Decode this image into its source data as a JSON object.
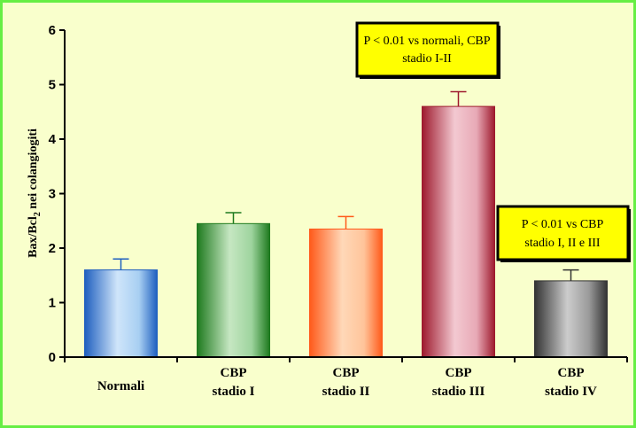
{
  "chart_data": {
    "type": "bar",
    "ylabel_main": "Bax/Bcl",
    "ylabel_sub": "2",
    "ylabel_tail": " nei colangiogiti",
    "ylim": [
      0,
      6
    ],
    "yticks": [
      "0",
      "1",
      "2",
      "3",
      "4",
      "5",
      "6"
    ],
    "categories": [
      {
        "line1": "Normali",
        "line2": ""
      },
      {
        "line1": "CBP",
        "line2": "stadio I"
      },
      {
        "line1": "CBP",
        "line2": "stadio II"
      },
      {
        "line1": "CBP",
        "line2": "stadio III"
      },
      {
        "line1": "CBP",
        "line2": "stadio IV"
      }
    ],
    "values": [
      1.6,
      2.45,
      2.35,
      4.6,
      1.4
    ],
    "errors": [
      0.2,
      0.2,
      0.23,
      0.27,
      0.2
    ],
    "bar_colors": [
      {
        "edge": "#1f5fbf",
        "mid": "#a8cff2",
        "light": "#cfe5fa"
      },
      {
        "edge": "#1e7a1e",
        "mid": "#9ed49e",
        "light": "#c6e7c2"
      },
      {
        "edge": "#ff5a1a",
        "mid": "#ffc49a",
        "light": "#ffd8b8"
      },
      {
        "edge": "#9e1a2e",
        "mid": "#e8a9b6",
        "light": "#f3c9d1"
      },
      {
        "edge": "#333333",
        "mid": "#9a9a9a",
        "light": "#cccccc"
      }
    ],
    "annotations": [
      {
        "line1": "P < 0.01 vs normali, CBP",
        "line2": "stadio I-II"
      },
      {
        "line1": "P < 0.01 vs CBP",
        "line2": "stadio I, II e III"
      }
    ],
    "background": "#f9ffcc",
    "border_color": "#66ee44",
    "annotation_fill": "#ffff00"
  }
}
